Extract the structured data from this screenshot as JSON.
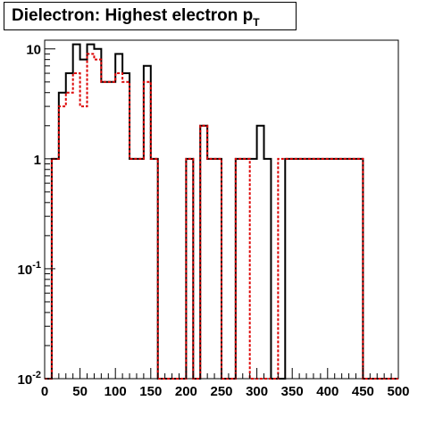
{
  "chart_data": {
    "type": "bar",
    "subtype": "step-histogram",
    "title": "Dielectron: Highest electron p",
    "title_subscript": "T",
    "xlabel": "",
    "ylabel": "",
    "xlim": [
      0,
      500
    ],
    "ylim": [
      0.01,
      12
    ],
    "yscale": "log",
    "grid": false,
    "legend": "none",
    "x_ticks": [
      "0",
      "50",
      "100",
      "150",
      "200",
      "250",
      "300",
      "350",
      "400",
      "450",
      "500"
    ],
    "y_ticks": [
      {
        "value": 10,
        "base": "10",
        "exp": ""
      },
      {
        "value": 1,
        "base": "1",
        "exp": ""
      },
      {
        "value": 0.1,
        "base": "10",
        "exp": "-1"
      },
      {
        "value": 0.01,
        "base": "10",
        "exp": "-2"
      }
    ],
    "bin_width": 10,
    "bin_edges_start": 0,
    "series": [
      {
        "color": "#000000",
        "style": "solid",
        "values": [
          0,
          1,
          4,
          6,
          11,
          8,
          11,
          10,
          5,
          5,
          9,
          6,
          1,
          1,
          7,
          1,
          0,
          0,
          0,
          0,
          1,
          0,
          2,
          1,
          1,
          0,
          0,
          1,
          1,
          1,
          2,
          1,
          0,
          0,
          1,
          1,
          1,
          1,
          1,
          1,
          1,
          1,
          1,
          1,
          1,
          0,
          0,
          0,
          0,
          0
        ]
      },
      {
        "color": "#dd0000",
        "style": "dashed",
        "values": [
          0,
          1,
          3,
          4,
          6,
          3,
          9,
          8,
          5,
          5,
          6,
          5,
          1,
          1,
          5,
          1,
          0,
          0,
          0,
          0,
          1,
          0,
          2,
          1,
          1,
          0,
          0,
          1,
          1,
          0.01,
          0.01,
          0.01,
          0.01,
          1,
          1,
          1,
          1,
          1,
          1,
          1,
          1,
          1,
          1,
          1,
          1,
          0,
          0,
          0,
          0,
          0
        ]
      }
    ]
  }
}
